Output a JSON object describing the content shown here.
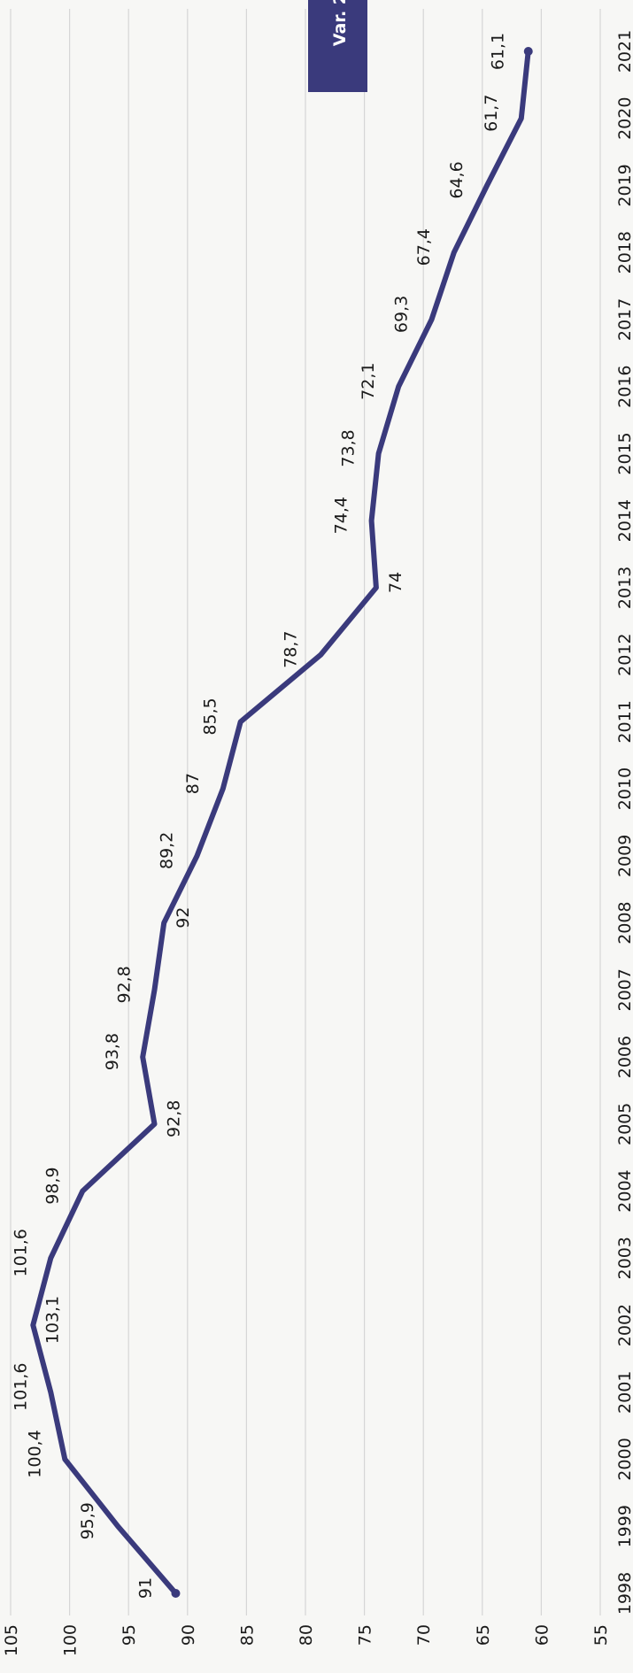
{
  "badge": {
    "text": "Var. 2",
    "color": "#3a3a7c"
  },
  "chart_data": {
    "type": "line",
    "title": "",
    "xlabel": "",
    "ylabel": "",
    "orientation": "rotated-90-clockwise",
    "grid": true,
    "ylim": [
      55,
      105
    ],
    "y_ticks": [
      55,
      60,
      65,
      70,
      75,
      80,
      85,
      90,
      95,
      100,
      105
    ],
    "series_color": "#3a3a7c",
    "x": [
      "1998",
      "1999",
      "2000",
      "2001",
      "2002",
      "2003",
      "2004",
      "2005",
      "2006",
      "2007",
      "2008",
      "2009",
      "2010",
      "2011",
      "2012",
      "2013",
      "2014",
      "2015",
      "2016",
      "2017",
      "2018",
      "2019",
      "2020",
      "2021"
    ],
    "values": [
      91,
      95.9,
      100.4,
      101.6,
      103.1,
      101.6,
      98.9,
      92.8,
      93.8,
      92.8,
      92,
      89.2,
      87,
      85.5,
      78.7,
      74,
      74.4,
      73.8,
      72.1,
      69.3,
      67.4,
      64.6,
      61.7,
      61.1
    ],
    "data_labels": [
      "91",
      "95,9",
      "100,4",
      "101,6",
      "103,1",
      "101,6",
      "98,9",
      "92,8",
      "93,8",
      "92,8",
      "92",
      "89,2",
      "87",
      "85,5",
      "78,7",
      "74",
      "74,4",
      "73,8",
      "72,1",
      "69,3",
      "67,4",
      "64,6",
      "61,7",
      "61,1"
    ],
    "y_tick_labels": [
      "55",
      "60",
      "65",
      "70",
      "75",
      "80",
      "85",
      "90",
      "95",
      "100",
      "105"
    ]
  }
}
